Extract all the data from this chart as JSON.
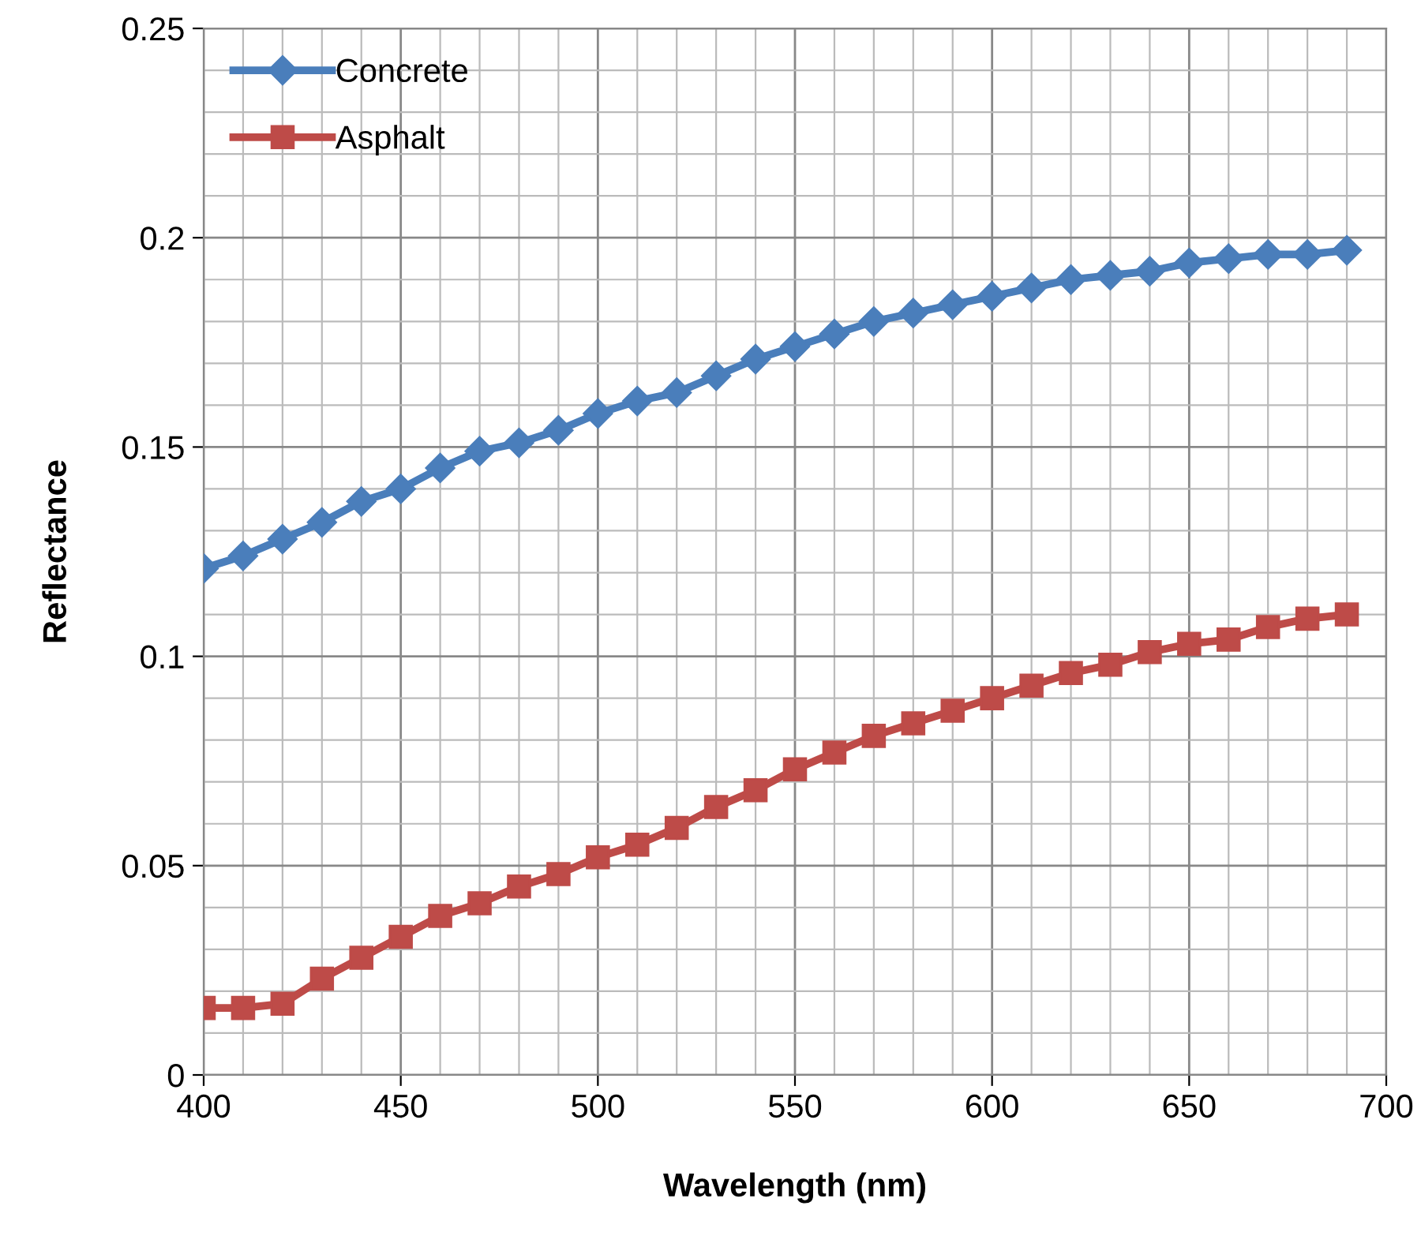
{
  "chart_data": {
    "type": "line",
    "xlabel": "Wavelength (nm)",
    "ylabel": "Reflectance",
    "x": [
      400,
      410,
      420,
      430,
      440,
      450,
      460,
      470,
      480,
      490,
      500,
      510,
      520,
      530,
      540,
      550,
      560,
      570,
      580,
      590,
      600,
      610,
      620,
      630,
      640,
      650,
      660,
      670,
      680,
      690
    ],
    "series": [
      {
        "name": "Concrete",
        "color": "#4a7ebb",
        "marker": "diamond",
        "values": [
          0.121,
          0.124,
          0.128,
          0.132,
          0.137,
          0.14,
          0.145,
          0.149,
          0.151,
          0.154,
          0.158,
          0.161,
          0.163,
          0.167,
          0.171,
          0.174,
          0.177,
          0.18,
          0.182,
          0.184,
          0.186,
          0.188,
          0.19,
          0.191,
          0.192,
          0.194,
          0.195,
          0.196,
          0.196,
          0.197
        ]
      },
      {
        "name": "Asphalt",
        "color": "#be4b48",
        "marker": "square",
        "values": [
          0.016,
          0.016,
          0.017,
          0.023,
          0.028,
          0.033,
          0.038,
          0.041,
          0.045,
          0.048,
          0.052,
          0.055,
          0.059,
          0.064,
          0.068,
          0.073,
          0.077,
          0.081,
          0.084,
          0.087,
          0.09,
          0.093,
          0.096,
          0.098,
          0.101,
          0.103,
          0.104,
          0.107,
          0.109,
          0.11
        ]
      }
    ],
    "xlim": [
      400,
      700
    ],
    "xticks": [
      400,
      450,
      500,
      550,
      600,
      650,
      700
    ],
    "ylim": [
      0,
      0.25
    ],
    "yticks": [
      0,
      0.05,
      0.1,
      0.15,
      0.2,
      0.25
    ],
    "grid": true,
    "legend": "top left",
    "line_style": "solid"
  }
}
